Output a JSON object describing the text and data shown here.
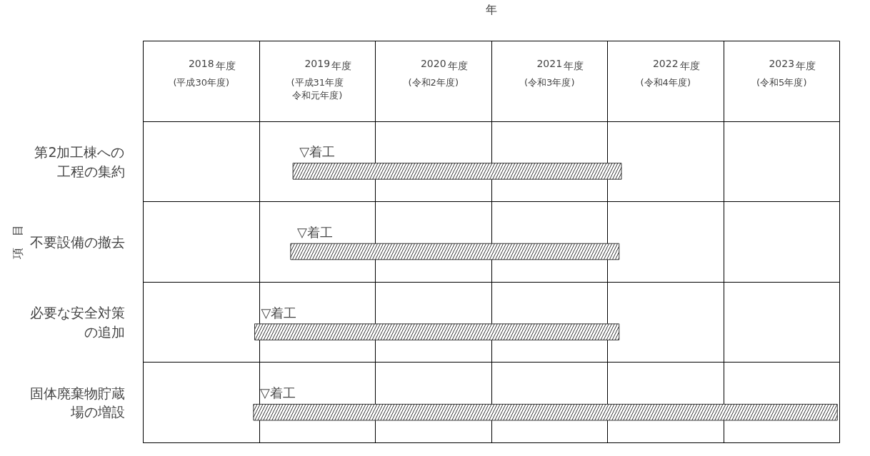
{
  "chart_data": {
    "type": "bar",
    "orientation": "horizontal",
    "xlabel": "年",
    "ylabel": "項　目",
    "categories": [
      "第2加工棟への工程の集約",
      "不要設備の撤去",
      "必要な安全対策の追加",
      "固体廃棄物貯蔵場の増設"
    ],
    "base": [
      2018.79,
      2018.77,
      2018.46,
      2018.45
    ],
    "values": [
      2.83,
      2.83,
      3.14,
      5.03
    ],
    "color": "#333333",
    "xlim": [
      2017.5,
      2023.5
    ],
    "xticks": [
      {
        "value": 2017.5,
        "label": null
      },
      2018,
      {
        "value": 2018.5,
        "label": null
      },
      2019,
      {
        "value": 2019.5,
        "label": null
      },
      2020,
      {
        "value": 2020.5,
        "label": null
      },
      2021,
      {
        "value": 2021.5,
        "label": null
      },
      2022,
      {
        "value": 2022.5,
        "label": null
      },
      2023,
      {
        "value": 2023.5,
        "label": null
      }
    ],
    "grid": true,
    "annotations": [
      "年度",
      "年度",
      "年度",
      "年度",
      "年度",
      "年度",
      "(平成30年度)",
      "(平成31年度令和元年度)",
      "(令和2年度)",
      "(令和3年度)",
      "(令和4年度)",
      "(令和5年度)",
      {
        "text": "▽着工",
        "x": 2018.79,
        "y": "第2加工棟への工程の集約"
      },
      {
        "text": "▽着工",
        "x": 2018.77,
        "y": "不要設備の撤去"
      },
      {
        "text": "▽着工",
        "x": 2018.46,
        "y": "必要な安全対策の追加"
      },
      {
        "text": "▽着工",
        "x": 2018.45,
        "y": "固体廃棄物貯蔵場の増設"
      }
    ]
  }
}
